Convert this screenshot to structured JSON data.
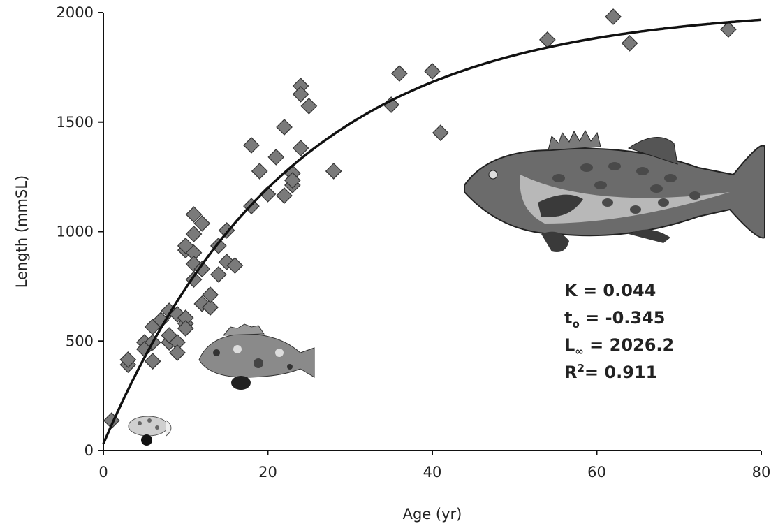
{
  "chart_data": {
    "type": "scatter",
    "x_label": "Age (yr)",
    "y_label": "Length (mmSL)",
    "xlim": [
      0,
      80
    ],
    "xticks": [
      0,
      20,
      40,
      60,
      80
    ],
    "ylim": [
      0,
      2000
    ],
    "yticks": [
      0,
      500,
      1000,
      1500,
      2000
    ],
    "series": [
      {
        "color": "#7a7a7a",
        "x": [
          1,
          3,
          3,
          5,
          5,
          6,
          6,
          6,
          7,
          8,
          8,
          8,
          9,
          9,
          9,
          10,
          10,
          10,
          10,
          10,
          11,
          11,
          11,
          11,
          11,
          12,
          12,
          12,
          13,
          13,
          14,
          14,
          15,
          15,
          16,
          18,
          18,
          19,
          20,
          21,
          22,
          22,
          23,
          23,
          23,
          24,
          24,
          24,
          25,
          28,
          35,
          36,
          40,
          41,
          54,
          62,
          64,
          76
        ],
        "values": [
          137,
          392,
          415,
          494,
          463,
          408,
          565,
          494,
          596,
          638,
          494,
          526,
          622,
          494,
          447,
          580,
          606,
          558,
          915,
          935,
          903,
          1078,
          989,
          852,
          781,
          670,
          829,
          1037,
          654,
          711,
          804,
          935,
          861,
          1005,
          845,
          1394,
          1116,
          1276,
          1171,
          1340,
          1477,
          1164,
          1212,
          1266,
          1234,
          1381,
          1665,
          1627,
          1573,
          1276,
          1579,
          1722,
          1732,
          1451,
          1876,
          1981,
          1860,
          1923
        ]
      }
    ],
    "fit_parameters": [
      {
        "symbol": "K",
        "text": " = 0.044",
        "value": 0.044
      },
      {
        "symbol": "t",
        "sub": "o",
        "text": " = -0.345",
        "value": -0.345
      },
      {
        "symbol": "L",
        "sub": "∞",
        "text": " = 2026.2",
        "value": 2026.2
      },
      {
        "symbol": "R",
        "sup": "2",
        "text": "= 0.911",
        "value": 0.911
      }
    ]
  }
}
